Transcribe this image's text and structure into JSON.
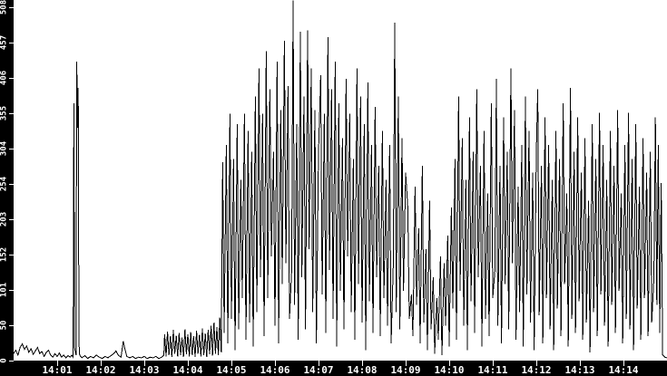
{
  "window": {
    "background": "#ffffff",
    "axis_background": "#000000",
    "line_color": "#000000",
    "tick_color": "#ffffff",
    "label_color": "#ffffff"
  },
  "chart_data": {
    "type": "line",
    "title": "",
    "xlabel": "",
    "ylabel": "",
    "grid": false,
    "legend": "none",
    "x_unit": "seconds after 14:00",
    "xlim_seconds": [
      0,
      900
    ],
    "ylim": [
      0,
      518
    ],
    "y_ticks": [
      0,
      50,
      101,
      152,
      203,
      254,
      304,
      355,
      406,
      457,
      508
    ],
    "x_tick_labels": [
      "14:01",
      "14:02",
      "14:03",
      "14:04",
      "14:05",
      "14:06",
      "14:07",
      "14:08",
      "14:09",
      "14:10",
      "14:11",
      "14:12",
      "14:13",
      "14:14"
    ],
    "points": [
      [
        0,
        10
      ],
      [
        3,
        15
      ],
      [
        6,
        8
      ],
      [
        9,
        19
      ],
      [
        12,
        24
      ],
      [
        15,
        16
      ],
      [
        18,
        21
      ],
      [
        21,
        12
      ],
      [
        24,
        17
      ],
      [
        27,
        9
      ],
      [
        30,
        14
      ],
      [
        33,
        19
      ],
      [
        36,
        10
      ],
      [
        39,
        13
      ],
      [
        42,
        6
      ],
      [
        45,
        12
      ],
      [
        48,
        15
      ],
      [
        51,
        8
      ],
      [
        54,
        5
      ],
      [
        57,
        10
      ],
      [
        60,
        6
      ],
      [
        63,
        11
      ],
      [
        66,
        5
      ],
      [
        69,
        8
      ],
      [
        72,
        4
      ],
      [
        75,
        7
      ],
      [
        78,
        5
      ],
      [
        80,
        8
      ],
      [
        82,
        5
      ],
      [
        83,
        370
      ],
      [
        84,
        18
      ],
      [
        86,
        8
      ],
      [
        87,
        430
      ],
      [
        88,
        335
      ],
      [
        89,
        392
      ],
      [
        90,
        25
      ],
      [
        91,
        8
      ],
      [
        94,
        4
      ],
      [
        98,
        7
      ],
      [
        102,
        3
      ],
      [
        106,
        6
      ],
      [
        110,
        4
      ],
      [
        114,
        8
      ],
      [
        118,
        5
      ],
      [
        122,
        3
      ],
      [
        126,
        6
      ],
      [
        130,
        4
      ],
      [
        134,
        7
      ],
      [
        138,
        10
      ],
      [
        141,
        14
      ],
      [
        144,
        8
      ],
      [
        148,
        5
      ],
      [
        151,
        28
      ],
      [
        153,
        18
      ],
      [
        156,
        6
      ],
      [
        160,
        4
      ],
      [
        164,
        6
      ],
      [
        168,
        3
      ],
      [
        172,
        5
      ],
      [
        176,
        4
      ],
      [
        180,
        6
      ],
      [
        184,
        3
      ],
      [
        188,
        5
      ],
      [
        192,
        4
      ],
      [
        196,
        6
      ],
      [
        200,
        3
      ],
      [
        204,
        5
      ],
      [
        207,
        8
      ],
      [
        208,
        38
      ],
      [
        210,
        6
      ],
      [
        212,
        42
      ],
      [
        214,
        8
      ],
      [
        216,
        35
      ],
      [
        218,
        5
      ],
      [
        220,
        44
      ],
      [
        222,
        10
      ],
      [
        224,
        36
      ],
      [
        226,
        6
      ],
      [
        228,
        40
      ],
      [
        230,
        8
      ],
      [
        232,
        33
      ],
      [
        234,
        5
      ],
      [
        236,
        45
      ],
      [
        238,
        9
      ],
      [
        240,
        38
      ],
      [
        242,
        6
      ],
      [
        244,
        41
      ],
      [
        246,
        8
      ],
      [
        248,
        35
      ],
      [
        250,
        5
      ],
      [
        252,
        43
      ],
      [
        254,
        10
      ],
      [
        256,
        37
      ],
      [
        258,
        6
      ],
      [
        260,
        46
      ],
      [
        262,
        8
      ],
      [
        264,
        39
      ],
      [
        266,
        5
      ],
      [
        268,
        44
      ],
      [
        270,
        9
      ],
      [
        272,
        50
      ],
      [
        274,
        7
      ],
      [
        276,
        55
      ],
      [
        278,
        10
      ],
      [
        280,
        48
      ],
      [
        282,
        8
      ],
      [
        284,
        62
      ],
      [
        286,
        12
      ],
      [
        288,
        285
      ],
      [
        290,
        40
      ],
      [
        293,
        310
      ],
      [
        295,
        25
      ],
      [
        298,
        355
      ],
      [
        300,
        60
      ],
      [
        303,
        290
      ],
      [
        305,
        15
      ],
      [
        308,
        340
      ],
      [
        310,
        45
      ],
      [
        313,
        260
      ],
      [
        315,
        90
      ],
      [
        318,
        355
      ],
      [
        320,
        30
      ],
      [
        323,
        330
      ],
      [
        325,
        55
      ],
      [
        328,
        300
      ],
      [
        330,
        20
      ],
      [
        333,
        380
      ],
      [
        335,
        70
      ],
      [
        338,
        420
      ],
      [
        340,
        120
      ],
      [
        343,
        355
      ],
      [
        345,
        35
      ],
      [
        348,
        445
      ],
      [
        350,
        90
      ],
      [
        353,
        390
      ],
      [
        355,
        150
      ],
      [
        358,
        300
      ],
      [
        360,
        50
      ],
      [
        363,
        430
      ],
      [
        365,
        25
      ],
      [
        368,
        360
      ],
      [
        370,
        110
      ],
      [
        373,
        460
      ],
      [
        375,
        140
      ],
      [
        378,
        395
      ],
      [
        380,
        60
      ],
      [
        383,
        130
      ],
      [
        385,
        518
      ],
      [
        387,
        80
      ],
      [
        390,
        340
      ],
      [
        392,
        30
      ],
      [
        395,
        473
      ],
      [
        397,
        120
      ],
      [
        400,
        380
      ],
      [
        402,
        45
      ],
      [
        405,
        475
      ],
      [
        407,
        160
      ],
      [
        410,
        420
      ],
      [
        412,
        70
      ],
      [
        415,
        360
      ],
      [
        417,
        25
      ],
      [
        420,
        300
      ],
      [
        423,
        410
      ],
      [
        425,
        95
      ],
      [
        428,
        355
      ],
      [
        430,
        40
      ],
      [
        433,
        465
      ],
      [
        435,
        130
      ],
      [
        438,
        390
      ],
      [
        440,
        60
      ],
      [
        443,
        430
      ],
      [
        445,
        20
      ],
      [
        448,
        370
      ],
      [
        450,
        100
      ],
      [
        453,
        320
      ],
      [
        455,
        45
      ],
      [
        458,
        405
      ],
      [
        460,
        150
      ],
      [
        463,
        355
      ],
      [
        465,
        70
      ],
      [
        468,
        290
      ],
      [
        470,
        30
      ],
      [
        473,
        420
      ],
      [
        475,
        110
      ],
      [
        478,
        380
      ],
      [
        480,
        55
      ],
      [
        483,
        340
      ],
      [
        485,
        15
      ],
      [
        488,
        400
      ],
      [
        490,
        85
      ],
      [
        493,
        310
      ],
      [
        495,
        40
      ],
      [
        498,
        365
      ],
      [
        500,
        120
      ],
      [
        503,
        280
      ],
      [
        505,
        35
      ],
      [
        508,
        330
      ],
      [
        510,
        90
      ],
      [
        513,
        260
      ],
      [
        515,
        50
      ],
      [
        518,
        310
      ],
      [
        520,
        25
      ],
      [
        523,
        140
      ],
      [
        525,
        486
      ],
      [
        527,
        70
      ],
      [
        530,
        380
      ],
      [
        532,
        45
      ],
      [
        535,
        320
      ],
      [
        537,
        100
      ],
      [
        540,
        270
      ],
      [
        543,
        220
      ],
      [
        545,
        60
      ],
      [
        548,
        95
      ],
      [
        550,
        35
      ],
      [
        553,
        250
      ],
      [
        555,
        80
      ],
      [
        558,
        190
      ],
      [
        560,
        25
      ],
      [
        563,
        280
      ],
      [
        565,
        55
      ],
      [
        568,
        160
      ],
      [
        570,
        15
      ],
      [
        573,
        230
      ],
      [
        575,
        45
      ],
      [
        578,
        120
      ],
      [
        580,
        10
      ],
      [
        583,
        90
      ],
      [
        585,
        30
      ],
      [
        588,
        150
      ],
      [
        590,
        8
      ],
      [
        593,
        140
      ],
      [
        595,
        50
      ],
      [
        598,
        180
      ],
      [
        600,
        20
      ],
      [
        603,
        220
      ],
      [
        605,
        75
      ],
      [
        608,
        290
      ],
      [
        610,
        30
      ],
      [
        613,
        380
      ],
      [
        615,
        100
      ],
      [
        618,
        320
      ],
      [
        620,
        50
      ],
      [
        623,
        260
      ],
      [
        625,
        15
      ],
      [
        628,
        350
      ],
      [
        630,
        85
      ],
      [
        633,
        300
      ],
      [
        635,
        40
      ],
      [
        638,
        390
      ],
      [
        640,
        120
      ],
      [
        643,
        280
      ],
      [
        645,
        20
      ],
      [
        648,
        330
      ],
      [
        650,
        60
      ],
      [
        653,
        240
      ],
      [
        655,
        35
      ],
      [
        658,
        370
      ],
      [
        660,
        90
      ],
      [
        663,
        130
      ],
      [
        665,
        405
      ],
      [
        667,
        50
      ],
      [
        670,
        280
      ],
      [
        672,
        25
      ],
      [
        675,
        350
      ],
      [
        677,
        110
      ],
      [
        680,
        300
      ],
      [
        682,
        45
      ],
      [
        685,
        420
      ],
      [
        687,
        140
      ],
      [
        690,
        360
      ],
      [
        692,
        30
      ],
      [
        695,
        250
      ],
      [
        697,
        70
      ],
      [
        700,
        310
      ],
      [
        702,
        20
      ],
      [
        705,
        380
      ],
      [
        707,
        95
      ],
      [
        710,
        330
      ],
      [
        712,
        55
      ],
      [
        715,
        270
      ],
      [
        717,
        15
      ],
      [
        720,
        300
      ],
      [
        722,
        390
      ],
      [
        724,
        65
      ],
      [
        727,
        280
      ],
      [
        729,
        25
      ],
      [
        732,
        350
      ],
      [
        734,
        90
      ],
      [
        737,
        310
      ],
      [
        739,
        45
      ],
      [
        742,
        260
      ],
      [
        744,
        15
      ],
      [
        747,
        330
      ],
      [
        749,
        75
      ],
      [
        752,
        290
      ],
      [
        754,
        35
      ],
      [
        757,
        370
      ],
      [
        759,
        110
      ],
      [
        762,
        240
      ],
      [
        764,
        20
      ],
      [
        767,
        392
      ],
      [
        769,
        60
      ],
      [
        772,
        300
      ],
      [
        774,
        40
      ],
      [
        777,
        350
      ],
      [
        779,
        85
      ],
      [
        782,
        270
      ],
      [
        784,
        30
      ],
      [
        787,
        320
      ],
      [
        789,
        55
      ],
      [
        792,
        230
      ],
      [
        794,
        12
      ],
      [
        797,
        340
      ],
      [
        799,
        70
      ],
      [
        802,
        290
      ],
      [
        804,
        35
      ],
      [
        807,
        356
      ],
      [
        809,
        95
      ],
      [
        812,
        310
      ],
      [
        814,
        50
      ],
      [
        817,
        260
      ],
      [
        819,
        20
      ],
      [
        822,
        330
      ],
      [
        824,
        80
      ],
      [
        827,
        280
      ],
      [
        829,
        40
      ],
      [
        832,
        360
      ],
      [
        834,
        100
      ],
      [
        837,
        240
      ],
      [
        839,
        25
      ],
      [
        842,
        310
      ],
      [
        844,
        60
      ],
      [
        847,
        356
      ],
      [
        849,
        45
      ],
      [
        852,
        290
      ],
      [
        854,
        15
      ],
      [
        857,
        340
      ],
      [
        859,
        75
      ],
      [
        862,
        250
      ],
      [
        864,
        30
      ],
      [
        867,
        320
      ],
      [
        869,
        90
      ],
      [
        872,
        270
      ],
      [
        874,
        35
      ],
      [
        877,
        300
      ],
      [
        879,
        55
      ],
      [
        882,
        120
      ],
      [
        884,
        350
      ],
      [
        886,
        80
      ],
      [
        888,
        310
      ],
      [
        890,
        40
      ],
      [
        892,
        255
      ],
      [
        894,
        8
      ],
      [
        897,
        5
      ],
      [
        900,
        4
      ]
    ]
  }
}
